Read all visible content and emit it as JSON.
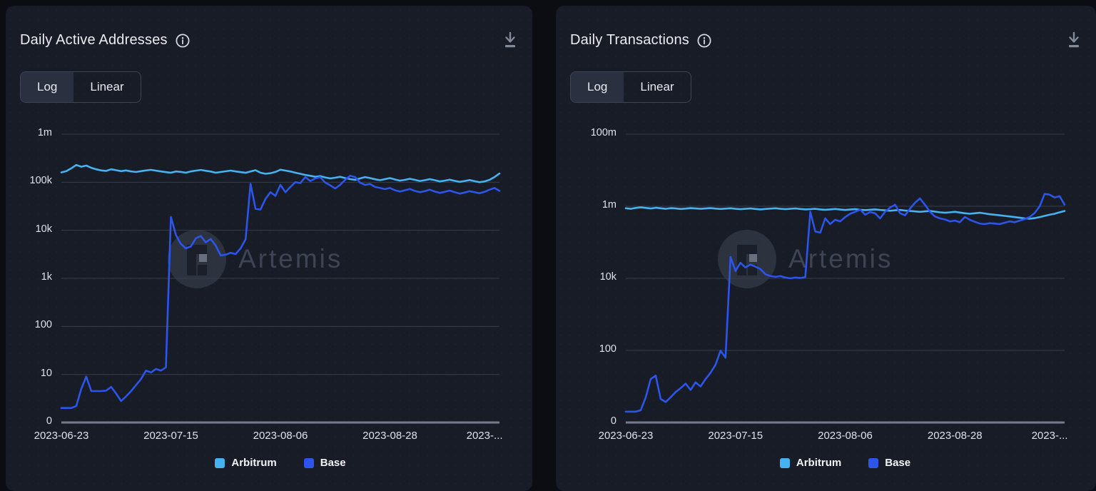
{
  "page": {
    "background": "#0b0d13",
    "panel_background": "#181c27"
  },
  "panels": [
    {
      "title": "Daily Active Addresses",
      "toggle": {
        "log": "Log",
        "linear": "Linear",
        "selected": "Log"
      },
      "watermark": "Artemis"
    },
    {
      "title": "Daily Transactions",
      "toggle": {
        "log": "Log",
        "linear": "Linear",
        "selected": "Log"
      },
      "watermark": "Artemis"
    }
  ],
  "chart_data": [
    {
      "type": "line",
      "title": "Daily Active Addresses",
      "scale": "log",
      "grid": true,
      "legend_position": "bottom",
      "y_axis": {
        "ticks": [
          "1m",
          "100k",
          "10k",
          "1k",
          "100",
          "10",
          "0"
        ],
        "log_decades": 6,
        "range": [
          1,
          1000000
        ]
      },
      "x_axis": {
        "ticks": [
          "2023-06-23",
          "2023-07-15",
          "2023-08-06",
          "2023-08-28",
          "2023-..."
        ],
        "tick_indices": [
          0,
          22,
          44,
          66,
          85
        ],
        "points": 89
      },
      "series": [
        {
          "name": "Arbitrum",
          "color": "#47b2f0",
          "values": [
            160000,
            170000,
            195000,
            228000,
            210000,
            222000,
            200000,
            186000,
            176000,
            172000,
            186000,
            178000,
            170000,
            176000,
            168000,
            163000,
            170000,
            176000,
            181000,
            174000,
            168000,
            162000,
            158000,
            168000,
            164000,
            158000,
            168000,
            174000,
            180000,
            173000,
            167000,
            158000,
            163000,
            169000,
            175000,
            168000,
            162000,
            157000,
            168000,
            178000,
            158000,
            150000,
            154000,
            164000,
            182000,
            175000,
            167000,
            158000,
            150000,
            142000,
            136000,
            130000,
            134000,
            126000,
            120000,
            124000,
            130000,
            122000,
            116000,
            112000,
            120000,
            128000,
            122000,
            115000,
            110000,
            116000,
            122000,
            114000,
            108000,
            112000,
            118000,
            112000,
            106000,
            110000,
            116000,
            110000,
            104000,
            108000,
            113000,
            107000,
            102000,
            106000,
            111000,
            105000,
            100000,
            104000,
            112000,
            128000,
            152000
          ]
        },
        {
          "name": "Base",
          "color": "#2c55ea",
          "values": [
            2,
            2,
            2,
            2.2,
            5,
            9,
            4.5,
            4.5,
            4.5,
            4.6,
            5.5,
            4,
            2.8,
            3.5,
            4.5,
            6,
            8,
            12,
            11,
            13,
            12,
            14,
            19000,
            8000,
            5200,
            4200,
            4600,
            6800,
            7600,
            5600,
            6600,
            4800,
            3000,
            3100,
            3400,
            3200,
            4200,
            6500,
            93000,
            28000,
            27000,
            45000,
            62000,
            52000,
            88000,
            62000,
            80000,
            100000,
            96000,
            128000,
            106000,
            120000,
            127000,
            98000,
            86000,
            74000,
            88000,
            112000,
            136000,
            128000,
            98000,
            88000,
            92000,
            80000,
            76000,
            72000,
            76000,
            68000,
            64000,
            68000,
            72000,
            66000,
            62000,
            65000,
            70000,
            64000,
            60000,
            63000,
            67000,
            62000,
            58000,
            61000,
            65000,
            62000,
            59000,
            63000,
            70000,
            76000,
            66000
          ]
        }
      ],
      "watermark": "Artemis"
    },
    {
      "type": "line",
      "title": "Daily Transactions",
      "scale": "log",
      "grid": true,
      "legend_position": "bottom",
      "y_axis": {
        "ticks": [
          "100m",
          "1m",
          "10k",
          "100",
          "0"
        ],
        "log_decades": 8,
        "range": [
          1,
          100000000
        ]
      },
      "x_axis": {
        "ticks": [
          "2023-06-23",
          "2023-07-15",
          "2023-08-06",
          "2023-08-28",
          "2023-..."
        ],
        "tick_indices": [
          0,
          22,
          44,
          66,
          85
        ],
        "points": 89
      },
      "series": [
        {
          "name": "Arbitrum",
          "color": "#47b2f0",
          "values": [
            880000,
            850000,
            900000,
            930000,
            900000,
            870000,
            910000,
            880000,
            850000,
            890000,
            870000,
            840000,
            860000,
            890000,
            870000,
            850000,
            870000,
            890000,
            860000,
            840000,
            860000,
            880000,
            850000,
            830000,
            850000,
            870000,
            840000,
            820000,
            840000,
            860000,
            880000,
            850000,
            830000,
            850000,
            870000,
            840000,
            820000,
            830000,
            850000,
            820000,
            800000,
            820000,
            840000,
            810000,
            790000,
            810000,
            830000,
            800000,
            780000,
            800000,
            820000,
            790000,
            770000,
            750000,
            770000,
            790000,
            760000,
            740000,
            720000,
            700000,
            720000,
            740000,
            710000,
            680000,
            660000,
            680000,
            700000,
            670000,
            640000,
            620000,
            640000,
            660000,
            630000,
            600000,
            580000,
            560000,
            540000,
            520000,
            500000,
            480000,
            460000,
            450000,
            470000,
            500000,
            540000,
            580000,
            620000,
            680000,
            740000
          ]
        },
        {
          "name": "Base",
          "color": "#2c55ea",
          "values": [
            2,
            2,
            2,
            2.2,
            5,
            16,
            20,
            4.5,
            3.7,
            5,
            7,
            9,
            12,
            8,
            13,
            10,
            16,
            24,
            40,
            98,
            63,
            39000,
            16000,
            27000,
            20000,
            24000,
            21000,
            18000,
            13000,
            11500,
            11000,
            11500,
            10500,
            10000,
            10500,
            10200,
            10800,
            700000,
            200000,
            185000,
            460000,
            320000,
            420000,
            380000,
            500000,
            620000,
            700000,
            810000,
            580000,
            690000,
            640000,
            460000,
            700000,
            920000,
            1100000,
            640000,
            560000,
            870000,
            1250000,
            1650000,
            1100000,
            700000,
            520000,
            460000,
            430000,
            380000,
            400000,
            360000,
            505000,
            420000,
            370000,
            330000,
            320000,
            340000,
            330000,
            320000,
            350000,
            380000,
            360000,
            400000,
            440000,
            505000,
            650000,
            1000000,
            2200000,
            2100000,
            1750000,
            1900000,
            1100000
          ]
        }
      ],
      "watermark": "Artemis"
    }
  ]
}
